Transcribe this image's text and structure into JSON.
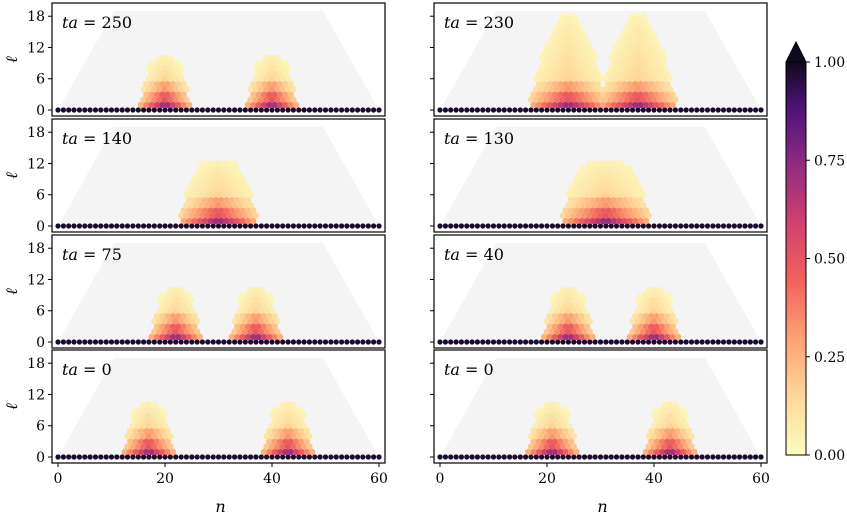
{
  "chart_data": {
    "type": "heatmap",
    "xlabel": "n",
    "ylabel": "ℓ",
    "xlim": [
      0,
      60
    ],
    "ylim": [
      -1,
      19
    ],
    "x_ticks": [
      "0",
      "20",
      "40",
      "60"
    ],
    "y_ticks": [
      "0",
      "6",
      "12",
      "18"
    ],
    "colorbar": {
      "ticks": [
        "0.00",
        "0.25",
        "0.50",
        "0.75",
        "1.00"
      ],
      "range": [
        0,
        1
      ],
      "colormap": "magma_r",
      "extend": "max"
    },
    "panels": [
      {
        "label": "ta = 250",
        "prefix": "ta = ",
        "value": "250",
        "peaks": [
          {
            "x": 20,
            "w": 5
          },
          {
            "x": 40,
            "w": 5
          }
        ],
        "height": 10,
        "spread": 0
      },
      {
        "label": "ta = 230",
        "prefix": "ta = ",
        "value": "230",
        "peaks": [
          {
            "x": 24,
            "w": 6
          },
          {
            "x": 37,
            "w": 6
          }
        ],
        "height": 18,
        "spread": 1
      },
      {
        "label": "ta = 140",
        "prefix": "ta = ",
        "value": "140",
        "peaks": [
          {
            "x": 30,
            "w": 6
          }
        ],
        "height": 12,
        "spread": 1
      },
      {
        "label": "ta = 130",
        "prefix": "ta = ",
        "value": "130",
        "peaks": [
          {
            "x": 31,
            "w": 7
          }
        ],
        "height": 12,
        "spread": 1
      },
      {
        "label": "ta = 75",
        "prefix": "ta = ",
        "value": "75",
        "peaks": [
          {
            "x": 22,
            "w": 5
          },
          {
            "x": 37,
            "w": 5
          }
        ],
        "height": 10,
        "spread": 0
      },
      {
        "label": "ta = 40",
        "prefix": "ta = ",
        "value": "40",
        "peaks": [
          {
            "x": 24,
            "w": 5
          },
          {
            "x": 40,
            "w": 5
          }
        ],
        "height": 10,
        "spread": 0
      },
      {
        "label": "ta = 0",
        "prefix": "ta = ",
        "value": "0",
        "peaks": [
          {
            "x": 17,
            "w": 5
          },
          {
            "x": 43,
            "w": 5
          }
        ],
        "height": 10,
        "spread": 0
      },
      {
        "label": "ta = 0",
        "prefix": "ta = ",
        "value": "0",
        "peaks": [
          {
            "x": 21,
            "w": 5
          },
          {
            "x": 43,
            "w": 5
          }
        ],
        "height": 10,
        "spread": 0
      }
    ]
  }
}
